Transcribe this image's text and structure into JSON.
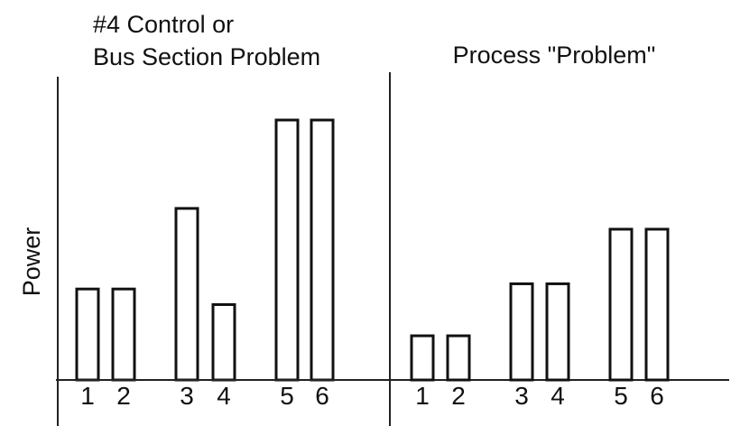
{
  "chart_data": [
    {
      "type": "bar",
      "title_lines": [
        "#4 Control or",
        "Bus Section Problem"
      ],
      "ylabel": "Power",
      "xlabel": "",
      "categories": [
        "1",
        "2",
        "3",
        "4",
        "5",
        "6"
      ],
      "values": [
        35,
        35,
        66,
        29,
        100,
        100
      ],
      "ylim": [
        0,
        100
      ],
      "grid": false
    },
    {
      "type": "bar",
      "title_lines": [
        "Process \"Problem\""
      ],
      "xlabel": "",
      "categories": [
        "1",
        "2",
        "3",
        "4",
        "5",
        "6"
      ],
      "values": [
        17,
        17,
        37,
        37,
        58,
        58
      ],
      "ylim": [
        0,
        100
      ],
      "grid": false
    }
  ]
}
